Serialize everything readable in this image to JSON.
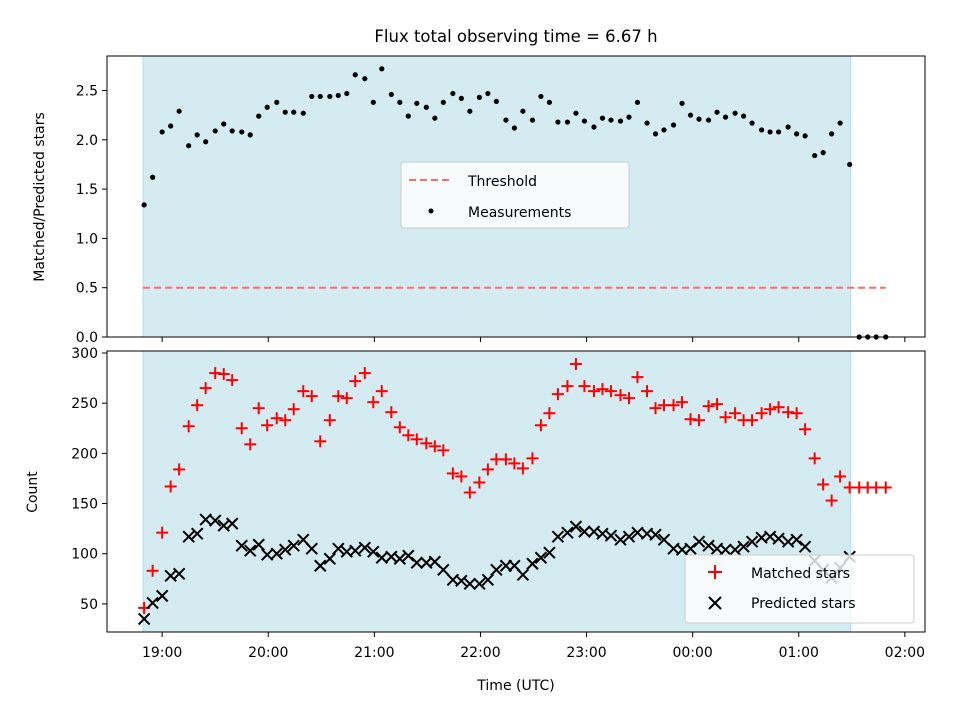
{
  "title": "Flux total observing time = 6.67 h",
  "colors": {
    "shade": "#d4ebf1",
    "threshold": "#ff6b6b",
    "measurements": "#000000",
    "matched": "#ff0000",
    "predicted": "#000000"
  },
  "chart_data": [
    {
      "type": "scatter",
      "title": "Flux total observing time = 6.67 h",
      "xlabel": "",
      "ylabel": "Matched/Predicted stars",
      "x_unit": "hours since 18:00 UTC",
      "xlim": [
        18.48,
        26.19
      ],
      "ylim": [
        0.0,
        2.85
      ],
      "yticks": [
        0.0,
        0.5,
        1.0,
        1.5,
        2.0,
        2.5
      ],
      "ytick_labels": [
        "0.0",
        "0.5",
        "1.0",
        "1.5",
        "2.0",
        "2.5"
      ],
      "shaded_x_range": [
        18.82,
        25.49
      ],
      "legend": {
        "position": "center",
        "entries": [
          "Threshold",
          "Measurements"
        ]
      },
      "threshold": {
        "name": "Threshold",
        "y": 0.5,
        "x_range": [
          18.82,
          25.82
        ],
        "style": "dashed"
      },
      "series": [
        {
          "name": "Measurements",
          "marker": "dot",
          "x": [
            18.83,
            18.91,
            19.0,
            19.08,
            19.16,
            19.25,
            19.33,
            19.41,
            19.5,
            19.58,
            19.66,
            19.75,
            19.83,
            19.91,
            19.99,
            20.08,
            20.16,
            20.24,
            20.33,
            20.41,
            20.49,
            20.58,
            20.66,
            20.74,
            20.82,
            20.91,
            20.99,
            21.07,
            21.16,
            21.24,
            21.32,
            21.4,
            21.49,
            21.57,
            21.65,
            21.74,
            21.82,
            21.9,
            21.99,
            22.07,
            22.15,
            22.24,
            22.32,
            22.4,
            22.49,
            22.57,
            22.65,
            22.73,
            22.82,
            22.9,
            22.98,
            23.07,
            23.15,
            23.23,
            23.32,
            23.4,
            23.48,
            23.57,
            23.65,
            23.73,
            23.82,
            23.9,
            23.98,
            24.06,
            24.15,
            24.23,
            24.31,
            24.4,
            24.48,
            24.56,
            24.65,
            24.73,
            24.81,
            24.9,
            24.98,
            25.06,
            25.15,
            25.23,
            25.31,
            25.39,
            25.48,
            25.57,
            25.65,
            25.73,
            25.82
          ],
          "y": [
            1.34,
            1.62,
            2.08,
            2.14,
            2.29,
            1.94,
            2.05,
            1.98,
            2.09,
            2.16,
            2.09,
            2.08,
            2.05,
            2.24,
            2.33,
            2.38,
            2.28,
            2.28,
            2.27,
            2.44,
            2.44,
            2.44,
            2.45,
            2.47,
            2.66,
            2.62,
            2.38,
            2.72,
            2.46,
            2.38,
            2.24,
            2.37,
            2.33,
            2.22,
            2.38,
            2.47,
            2.42,
            2.29,
            2.43,
            2.47,
            2.39,
            2.2,
            2.12,
            2.29,
            2.2,
            2.44,
            2.38,
            2.18,
            2.18,
            2.27,
            2.19,
            2.13,
            2.22,
            2.2,
            2.19,
            2.23,
            2.38,
            2.17,
            2.06,
            2.1,
            2.15,
            2.37,
            2.25,
            2.21,
            2.2,
            2.28,
            2.23,
            2.27,
            2.24,
            2.17,
            2.1,
            2.08,
            2.08,
            2.13,
            2.06,
            2.04,
            1.84,
            1.87,
            2.06,
            2.17,
            1.75,
            0.0,
            0.0,
            0.0,
            0.0
          ]
        }
      ]
    },
    {
      "type": "scatter",
      "xlabel": "Time (UTC)",
      "ylabel": "Count",
      "x_unit": "hours since 18:00 UTC",
      "xlim": [
        18.48,
        26.19
      ],
      "ylim": [
        22,
        302
      ],
      "xticks": [
        19,
        20,
        21,
        22,
        23,
        24,
        25,
        26
      ],
      "xtick_labels": [
        "19:00",
        "20:00",
        "21:00",
        "22:00",
        "23:00",
        "00:00",
        "01:00",
        "02:00"
      ],
      "yticks": [
        50,
        100,
        150,
        200,
        250,
        300
      ],
      "ytick_labels": [
        "50",
        "100",
        "150",
        "200",
        "250",
        "300"
      ],
      "shaded_x_range": [
        18.82,
        25.49
      ],
      "legend": {
        "position": "lower right",
        "entries": [
          "Matched stars",
          "Predicted stars"
        ]
      },
      "series": [
        {
          "name": "Matched stars",
          "marker": "plus",
          "x": [
            18.83,
            18.91,
            19.0,
            19.08,
            19.16,
            19.25,
            19.33,
            19.41,
            19.5,
            19.58,
            19.66,
            19.75,
            19.83,
            19.91,
            19.99,
            20.08,
            20.16,
            20.24,
            20.33,
            20.41,
            20.49,
            20.58,
            20.66,
            20.74,
            20.82,
            20.91,
            20.99,
            21.07,
            21.16,
            21.24,
            21.32,
            21.4,
            21.49,
            21.57,
            21.65,
            21.74,
            21.82,
            21.9,
            21.99,
            22.07,
            22.15,
            22.24,
            22.32,
            22.4,
            22.49,
            22.57,
            22.65,
            22.73,
            22.82,
            22.9,
            22.98,
            23.07,
            23.15,
            23.23,
            23.32,
            23.4,
            23.48,
            23.57,
            23.65,
            23.73,
            23.82,
            23.9,
            23.98,
            24.06,
            24.15,
            24.23,
            24.31,
            24.4,
            24.48,
            24.56,
            24.65,
            24.73,
            24.81,
            24.9,
            24.98,
            25.06,
            25.15,
            25.23,
            25.31,
            25.39,
            25.48,
            25.57,
            25.65,
            25.73,
            25.82
          ],
          "y": [
            46,
            83,
            121,
            167,
            184,
            227,
            248,
            265,
            280,
            279,
            273,
            225,
            209,
            245,
            228,
            235,
            233,
            244,
            262,
            257,
            212,
            233,
            257,
            255,
            272,
            280,
            251,
            262,
            241,
            226,
            218,
            214,
            210,
            207,
            203,
            180,
            177,
            161,
            171,
            184,
            194,
            194,
            190,
            185,
            195,
            228,
            240,
            259,
            267,
            289,
            267,
            262,
            264,
            262,
            258,
            255,
            276,
            262,
            245,
            248,
            248,
            251,
            234,
            233,
            247,
            249,
            236,
            240,
            233,
            233,
            240,
            244,
            246,
            241,
            240,
            224,
            195,
            169,
            153,
            177,
            166,
            166,
            166,
            166,
            166
          ]
        },
        {
          "name": "Predicted stars",
          "marker": "x",
          "x": [
            18.83,
            18.91,
            19.0,
            19.08,
            19.16,
            19.25,
            19.33,
            19.41,
            19.5,
            19.58,
            19.66,
            19.75,
            19.83,
            19.91,
            19.99,
            20.08,
            20.16,
            20.24,
            20.33,
            20.41,
            20.49,
            20.58,
            20.66,
            20.74,
            20.82,
            20.91,
            20.99,
            21.07,
            21.16,
            21.24,
            21.32,
            21.4,
            21.49,
            21.57,
            21.65,
            21.74,
            21.82,
            21.9,
            21.99,
            22.07,
            22.15,
            22.24,
            22.32,
            22.4,
            22.49,
            22.57,
            22.65,
            22.73,
            22.82,
            22.9,
            22.98,
            23.07,
            23.15,
            23.23,
            23.32,
            23.4,
            23.48,
            23.57,
            23.65,
            23.73,
            23.82,
            23.9,
            23.98,
            24.06,
            24.15,
            24.23,
            24.31,
            24.4,
            24.48,
            24.56,
            24.65,
            24.73,
            24.81,
            24.9,
            24.98,
            25.06,
            25.15,
            25.23,
            25.31,
            25.39,
            25.48
          ],
          "y": [
            35,
            51,
            58,
            78,
            80,
            117,
            120,
            134,
            133,
            128,
            130,
            108,
            103,
            109,
            99,
            100,
            104,
            108,
            114,
            105,
            88,
            95,
            105,
            102,
            103,
            106,
            102,
            96,
            97,
            95,
            98,
            91,
            91,
            92,
            84,
            74,
            73,
            70,
            70,
            74,
            84,
            88,
            88,
            79,
            90,
            96,
            101,
            117,
            121,
            127,
            122,
            122,
            120,
            118,
            114,
            117,
            121,
            120,
            119,
            114,
            105,
            104,
            105,
            112,
            108,
            105,
            104,
            104,
            107,
            112,
            116,
            117,
            115,
            112,
            114,
            107,
            93,
            84,
            76,
            86,
            97
          ]
        }
      ]
    }
  ]
}
